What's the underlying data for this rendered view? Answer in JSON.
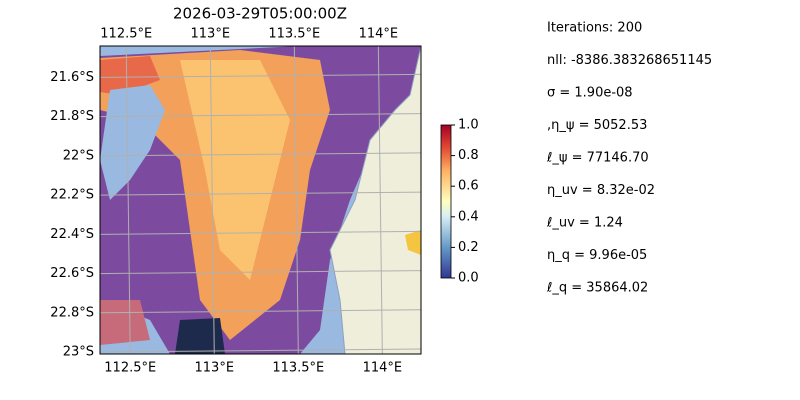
{
  "chart_data": {
    "type": "map",
    "title": "2026-03-29T05:00:00Z",
    "xlim": [
      112.32,
      114.23
    ],
    "ylim": [
      -23.01,
      -21.44
    ],
    "xticks": [
      {
        "value": 112.5,
        "label": "112.5°E"
      },
      {
        "value": 113,
        "label": "113°E"
      },
      {
        "value": 113.5,
        "label": "113.5°E"
      },
      {
        "value": 114,
        "label": "114°E"
      }
    ],
    "yticks": [
      {
        "value": -21.6,
        "label": "21.6°S"
      },
      {
        "value": -21.8,
        "label": "21.8°S"
      },
      {
        "value": -22,
        "label": "22°S"
      },
      {
        "value": -22.2,
        "label": "22.2°S"
      },
      {
        "value": -22.4,
        "label": "22.4°S"
      },
      {
        "value": -22.6,
        "label": "22.6°S"
      },
      {
        "value": -22.8,
        "label": "22.8°S"
      },
      {
        "value": -23,
        "label": "23°S"
      }
    ],
    "grid": true,
    "colorbar": {
      "lim": [
        0,
        1
      ],
      "ticks": [
        {
          "value": 0,
          "label": "0.0"
        },
        {
          "value": 0.2,
          "label": "0.2"
        },
        {
          "value": 0.4,
          "label": "0.4"
        },
        {
          "value": 0.6,
          "label": "0.6"
        },
        {
          "value": 0.8,
          "label": "0.8"
        },
        {
          "value": 1,
          "label": "1.0"
        }
      ]
    },
    "annotations": [
      "Iterations: 200",
      "nll: -8386.383268651145",
      "σ = 1.90e-08",
      ",η_ψ = 5052.53",
      "ℓ_ψ = 77146.70",
      "η_uv = 8.32e-02",
      "ℓ_uv = 1.24",
      "η_q = 9.96e-05",
      "ℓ_q = 35864.02"
    ]
  }
}
